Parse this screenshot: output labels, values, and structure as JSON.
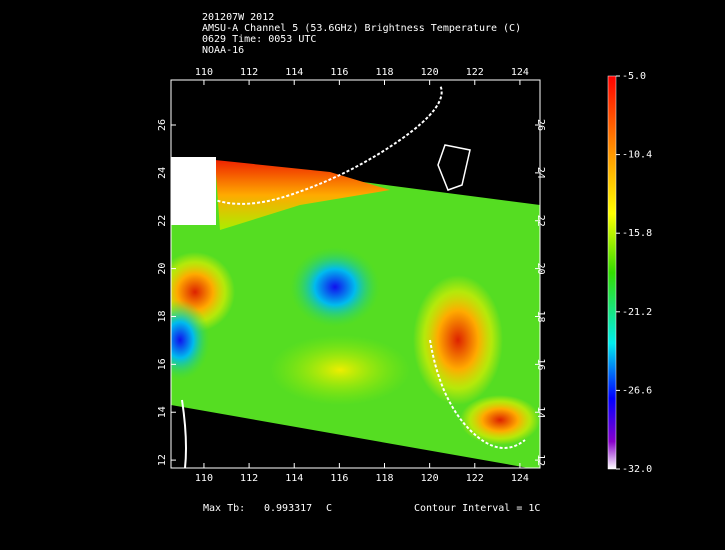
{
  "header": {
    "lines": [
      "201207W 2012",
      "AMSU-A Channel 5 (53.6GHz) Brightness Temperature (C)",
      "0629 Time: 0053 UTC",
      "NOAA-16"
    ]
  },
  "map": {
    "xlim": [
      108.54,
      124.89
    ],
    "ylim": [
      11.67,
      27.88
    ],
    "xticks": [
      110,
      112,
      114,
      116,
      118,
      120,
      122,
      124
    ],
    "yticks": [
      12,
      14,
      16,
      18,
      20,
      22,
      24,
      26
    ]
  },
  "colorbar": {
    "range": [
      -32,
      -5
    ],
    "ticks": [
      {
        "value": -5,
        "label": "-5.0"
      },
      {
        "value": -10.4,
        "label": "-10.4"
      },
      {
        "value": -15.8,
        "label": "-15.8"
      },
      {
        "value": -21.2,
        "label": "-21.2"
      },
      {
        "value": -26.6,
        "label": "-26.6"
      },
      {
        "value": -32,
        "label": "-32.0"
      }
    ]
  },
  "footer": {
    "max_label": "Max Tb:",
    "max_value": 0.993317,
    "unit": "C",
    "contour": "Contour Interval = 1C"
  }
}
